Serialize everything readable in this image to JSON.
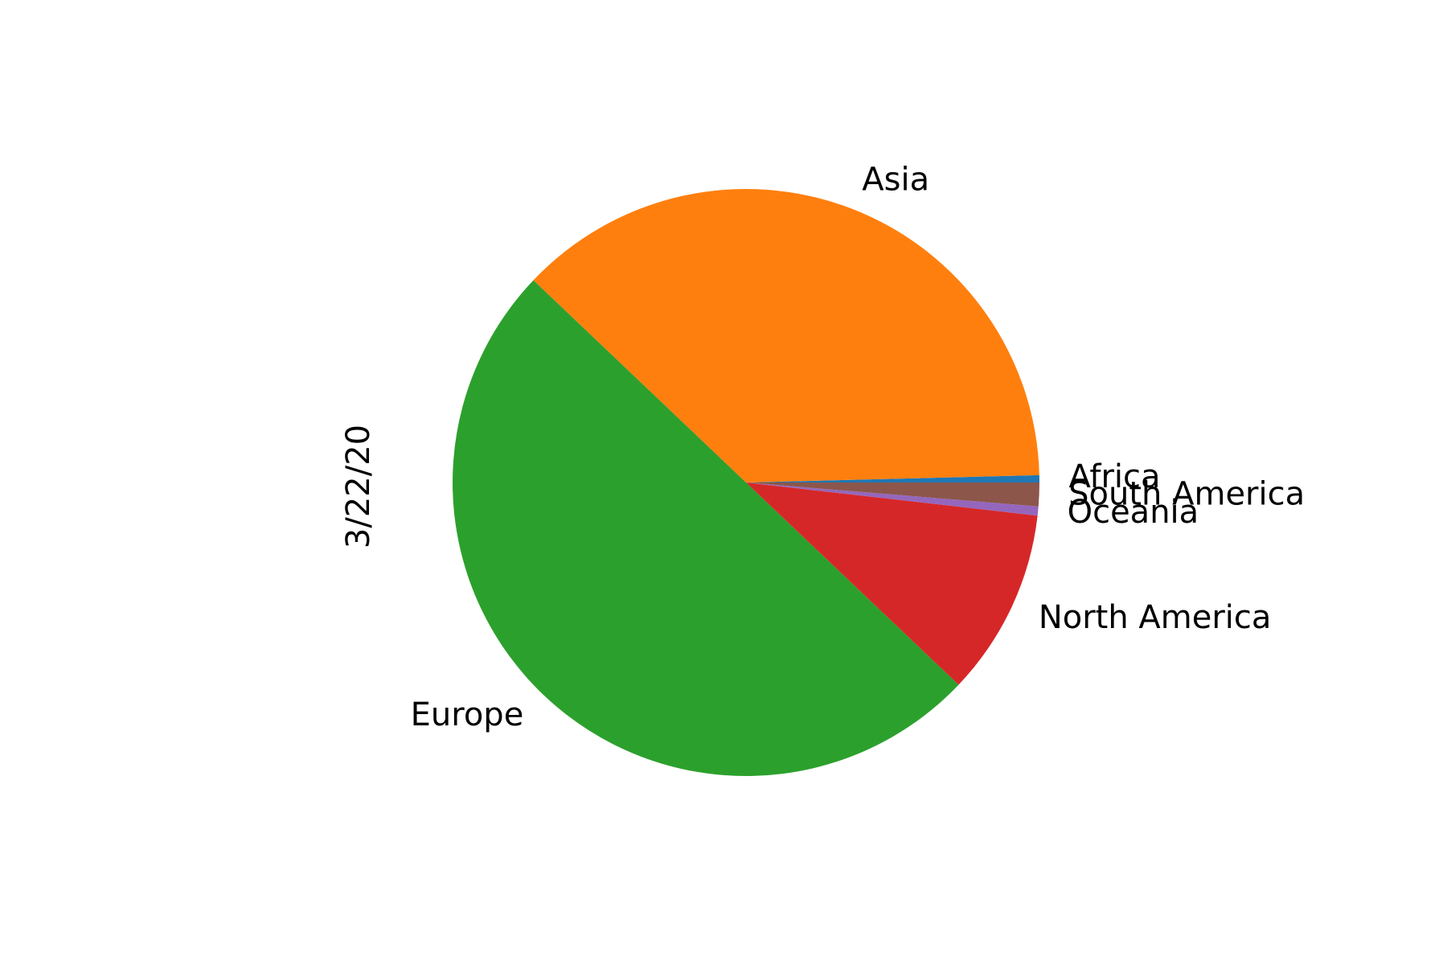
{
  "chart_data": {
    "type": "pie",
    "ylabel": "3/22/20",
    "start_angle_deg": 0,
    "direction": "counterclockwise",
    "slices": [
      {
        "label": "Africa",
        "value": 0.4,
        "color": "#1f77b4"
      },
      {
        "label": "Asia",
        "value": 37.5,
        "color": "#ff7f0e"
      },
      {
        "label": "Europe",
        "value": 50.0,
        "color": "#2ca02c"
      },
      {
        "label": "North America",
        "value": 10.3,
        "color": "#d62728"
      },
      {
        "label": "Oceania",
        "value": 0.5,
        "color": "#9467bd"
      },
      {
        "label": "South America",
        "value": 1.3,
        "color": "#8c564b"
      }
    ],
    "legend": "none"
  }
}
